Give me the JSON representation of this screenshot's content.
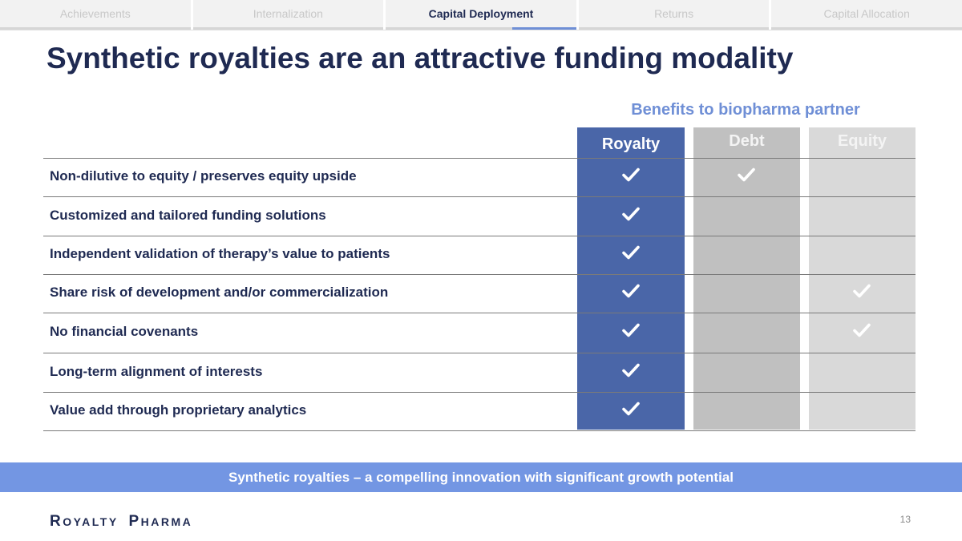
{
  "tabs": [
    {
      "label": "Achievements",
      "active": false
    },
    {
      "label": "Internalization",
      "active": false
    },
    {
      "label": "Capital Deployment",
      "active": true
    },
    {
      "label": "Returns",
      "active": false
    },
    {
      "label": "Capital Allocation",
      "active": false
    }
  ],
  "title": "Synthetic royalties are an attractive funding modality",
  "table": {
    "group_header": "Benefits to biopharma partner",
    "columns": [
      "Royalty",
      "Debt",
      "Equity"
    ],
    "rows": [
      {
        "label": "Non-dilutive to equity / preserves equity upside",
        "royalty": true,
        "debt": true,
        "equity": false
      },
      {
        "label": "Customized and tailored funding solutions",
        "royalty": true,
        "debt": false,
        "equity": false
      },
      {
        "label": "Independent validation of therapy’s value to patients",
        "royalty": true,
        "debt": false,
        "equity": false
      },
      {
        "label": "Share risk of development and/or commercialization",
        "royalty": true,
        "debt": false,
        "equity": true
      },
      {
        "label": "No financial covenants",
        "royalty": true,
        "debt": false,
        "equity": true
      },
      {
        "label": "Long-term alignment of interests",
        "royalty": true,
        "debt": false,
        "equity": false
      },
      {
        "label": "Value add through proprietary analytics",
        "royalty": true,
        "debt": false,
        "equity": false
      }
    ]
  },
  "banner": "Synthetic royalties – a compelling innovation with significant growth potential",
  "footer": {
    "logo": {
      "r": "R",
      "oyalty": "OYALTY",
      "p": "P",
      "harma": "HARMA"
    },
    "page_number": "13"
  },
  "colors": {
    "navy": "#1f2a52",
    "accent": "#6f8fd6",
    "royalty_col": "#4a66a8",
    "debt_col": "#c0c0c0",
    "equity_col": "#d9d9d9",
    "banner": "#7396e3"
  }
}
